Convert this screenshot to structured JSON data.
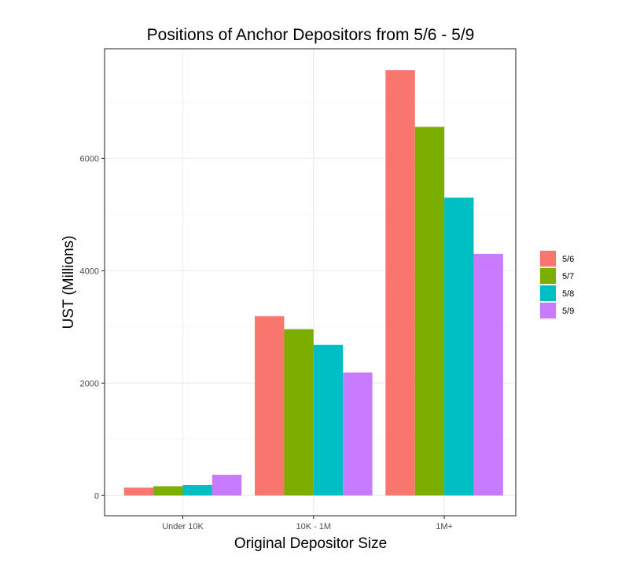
{
  "chart_data": {
    "type": "bar",
    "title": "Positions of Anchor Depositors from 5/6 - 5/9",
    "xlabel": "Original Depositor Size",
    "ylabel": "UST (Millions)",
    "categories": [
      "Under 10K",
      "10K - 1M",
      "1M+"
    ],
    "series": [
      {
        "name": "5/6",
        "color": "#F8766D",
        "values": [
          140,
          3190,
          7570
        ]
      },
      {
        "name": "5/7",
        "color": "#7CAE00",
        "values": [
          165,
          2960,
          6560
        ]
      },
      {
        "name": "5/8",
        "color": "#00BFC4",
        "values": [
          185,
          2680,
          5300
        ]
      },
      {
        "name": "5/9",
        "color": "#C77CFF",
        "values": [
          370,
          2190,
          4300
        ]
      }
    ],
    "yticks": [
      0,
      2000,
      4000,
      6000
    ],
    "ylim": [
      -360,
      7950
    ],
    "grid": true,
    "legend_position": "right"
  }
}
